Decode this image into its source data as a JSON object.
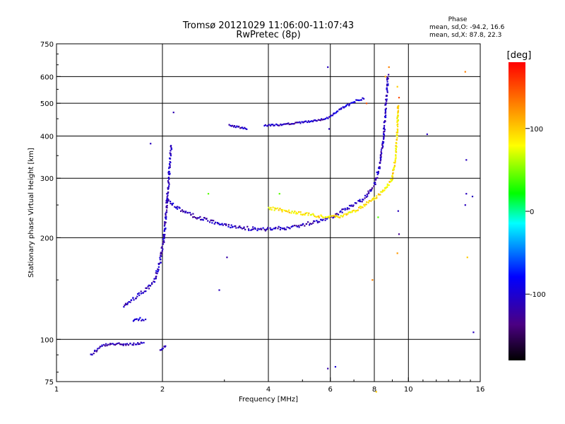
{
  "chart_data": {
    "type": "scatter",
    "title": "Tromsø 20121029 11:06:00-11:07:43",
    "subtitle": "RwPretec (8p)",
    "xlabel": "Frequency [MHz]",
    "ylabel": "Stationary phase Virtual Height [km]",
    "x_scale": "log",
    "y_scale": "log",
    "xlim": [
      1,
      16
    ],
    "ylim": [
      75,
      750
    ],
    "x_ticks": [
      1,
      2,
      4,
      6,
      8,
      10,
      16
    ],
    "y_ticks": [
      75,
      100,
      200,
      300,
      400,
      500,
      600,
      750
    ],
    "x_grid": [
      2,
      4,
      6,
      8,
      10
    ],
    "y_grid": [
      100,
      200,
      300,
      400,
      500,
      600
    ],
    "grid": true,
    "phase_info": {
      "heading": "Phase",
      "line1": "mean, sd,O: -94.2, 16.6",
      "line2": "mean, sd,X:  87.8, 22.3"
    },
    "colorbar": {
      "label": "[deg]",
      "range": [
        -180,
        180
      ],
      "ticks": [
        "100",
        "0",
        "-100"
      ],
      "tick_values": [
        100,
        0,
        -100
      ],
      "colors": [
        "#ff0000",
        "#ff8000",
        "#ffff00",
        "#00ff00",
        "#00ffff",
        "#0000ff",
        "#4b0082",
        "#000000"
      ]
    },
    "traces": [
      {
        "name": "o",
        "mode": "line",
        "phase": -115,
        "spread": 0.04,
        "points": [
          [
            1.25,
            90
          ],
          [
            1.35,
            96
          ],
          [
            1.5,
            97
          ],
          [
            1.7,
            97
          ],
          [
            1.78,
            98
          ]
        ]
      },
      {
        "name": "o",
        "mode": "line",
        "phase": -105,
        "spread": 0.04,
        "points": [
          [
            1.65,
            113
          ],
          [
            1.73,
            115
          ],
          [
            1.8,
            114
          ]
        ]
      },
      {
        "name": "o",
        "mode": "line",
        "phase": -110,
        "spread": 0.05,
        "points": [
          [
            1.55,
            125
          ],
          [
            1.7,
            135
          ],
          [
            1.82,
            142
          ],
          [
            1.9,
            150
          ],
          [
            1.97,
            170
          ],
          [
            2.02,
            200
          ],
          [
            2.05,
            240
          ],
          [
            2.08,
            290
          ],
          [
            2.1,
            340
          ],
          [
            2.12,
            380
          ]
        ]
      },
      {
        "name": "o",
        "mode": "line",
        "phase": -110,
        "spread": 0.05,
        "points": [
          [
            2.05,
            260
          ],
          [
            2.2,
            245
          ],
          [
            2.5,
            230
          ],
          [
            3,
            218
          ],
          [
            3.5,
            213
          ],
          [
            4,
            212
          ],
          [
            4.5,
            214
          ],
          [
            5,
            218
          ],
          [
            5.5,
            224
          ],
          [
            6,
            230
          ],
          [
            6.5,
            240
          ],
          [
            7,
            250
          ],
          [
            7.5,
            262
          ],
          [
            8,
            285
          ],
          [
            8.3,
            330
          ],
          [
            8.5,
            400
          ],
          [
            8.6,
            470
          ],
          [
            8.7,
            550
          ],
          [
            8.75,
            610
          ]
        ]
      },
      {
        "name": "x",
        "mode": "line",
        "phase": 90,
        "spread": 0.04,
        "points": [
          [
            4,
            245
          ],
          [
            4.5,
            240
          ],
          [
            5,
            236
          ],
          [
            5.5,
            232
          ],
          [
            6,
            230
          ],
          [
            6.5,
            232
          ],
          [
            7,
            240
          ],
          [
            7.5,
            250
          ],
          [
            8,
            262
          ],
          [
            8.5,
            275
          ],
          [
            9,
            300
          ],
          [
            9.2,
            350
          ],
          [
            9.3,
            420
          ],
          [
            9.35,
            500
          ]
        ]
      },
      {
        "name": "o",
        "mode": "line",
        "phase": -110,
        "spread": 0.02,
        "points": [
          [
            3.1,
            430
          ],
          [
            3.3,
            425
          ],
          [
            3.5,
            420
          ]
        ]
      },
      {
        "name": "o",
        "mode": "line",
        "phase": -110,
        "spread": 0.02,
        "points": [
          [
            3.9,
            430
          ],
          [
            4.3,
            432
          ],
          [
            4.8,
            437
          ],
          [
            5.5,
            445
          ],
          [
            6,
            455
          ]
        ]
      },
      {
        "name": "o",
        "mode": "line",
        "phase": -100,
        "spread": 0.03,
        "points": [
          [
            6,
            460
          ],
          [
            6.5,
            485
          ],
          [
            7,
            505
          ],
          [
            7.5,
            520
          ]
        ]
      },
      {
        "name": "o",
        "mode": "line",
        "phase": -105,
        "spread": 0.02,
        "points": [
          [
            1.97,
            93
          ],
          [
            2.02,
            95
          ],
          [
            2.05,
            96
          ]
        ]
      },
      {
        "name": "misc",
        "mode": "scatter",
        "points": [
          [
            1.85,
            380,
            -110
          ],
          [
            2.15,
            470,
            -115
          ],
          [
            2.7,
            270,
            40
          ],
          [
            2.9,
            140,
            -110
          ],
          [
            3.05,
            175,
            -120
          ],
          [
            4.3,
            270,
            40
          ],
          [
            5.9,
            640,
            -110
          ],
          [
            5.95,
            420,
            -110
          ],
          [
            5.9,
            82,
            -120
          ],
          [
            6.2,
            83,
            -100
          ],
          [
            7.9,
            150,
            130
          ],
          [
            8.1,
            70,
            100
          ],
          [
            8.6,
            600,
            120
          ],
          [
            8.8,
            640,
            130
          ],
          [
            9.3,
            560,
            100
          ],
          [
            9.4,
            520,
            150
          ],
          [
            9.3,
            180,
            120
          ],
          [
            9.4,
            205,
            -130
          ],
          [
            9.35,
            240,
            -110
          ],
          [
            11.3,
            405,
            -110
          ],
          [
            14.5,
            620,
            130
          ],
          [
            14.6,
            340,
            -110
          ],
          [
            14.6,
            270,
            -110
          ],
          [
            14.7,
            175,
            100
          ],
          [
            15.2,
            265,
            -110
          ],
          [
            15.3,
            105,
            -110
          ],
          [
            14.5,
            250,
            -110
          ],
          [
            8.2,
            230,
            40
          ],
          [
            7.6,
            500,
            150
          ]
        ]
      }
    ]
  }
}
